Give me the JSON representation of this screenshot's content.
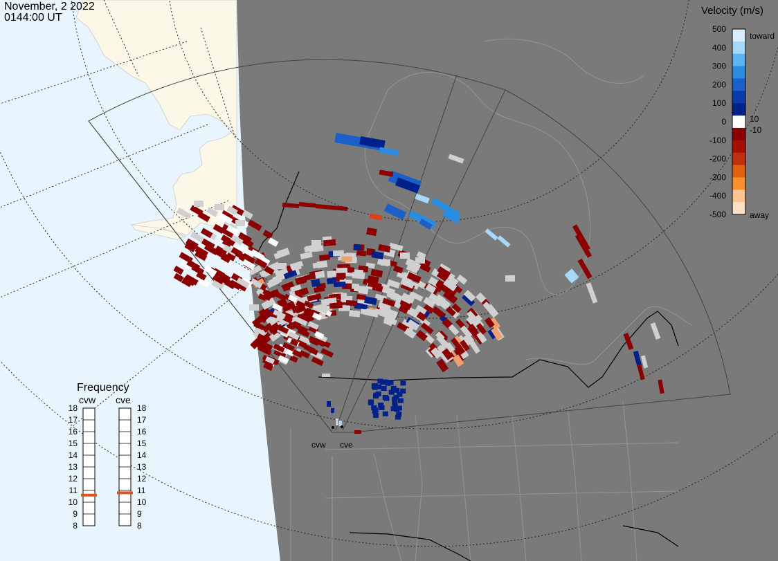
{
  "header": {
    "date": "November, 2 2022",
    "time": "0144:00 UT"
  },
  "colors": {
    "ocean": "#e8f4fe",
    "land_light": "#fbf8e8",
    "night": "#7a7a7a",
    "border": "#000000",
    "gray_scatter": "#d0d0d0"
  },
  "colorbar": {
    "title": "Velocity (m/s)",
    "ticks": [
      "500",
      "400",
      "300",
      "200",
      "100",
      "0",
      "-100",
      "-200",
      "-300",
      "-400",
      "-500"
    ],
    "extra_ticks": [
      "10",
      "-10"
    ],
    "toward_label": "toward",
    "away_label": "away",
    "stops": [
      "#d8eefe",
      "#a8d8fa",
      "#5ab4f2",
      "#2a8ce0",
      "#1a60c8",
      "#0a3ca8",
      "#00208a",
      "#ffffff",
      "#8a0000",
      "#a41000",
      "#c03010",
      "#e06010",
      "#f89030",
      "#fbc490",
      "#fde0c4"
    ]
  },
  "frequency": {
    "title": "Frequency",
    "radars": [
      "cvw",
      "cve"
    ],
    "ticks": [
      "18",
      "17",
      "16",
      "15",
      "14",
      "13",
      "12",
      "11",
      "10",
      "9",
      "8"
    ],
    "values_mhz": [
      10.6,
      10.8
    ],
    "marker_color": "#e05020"
  },
  "radar_sites": [
    "cvw",
    "cve"
  ]
}
